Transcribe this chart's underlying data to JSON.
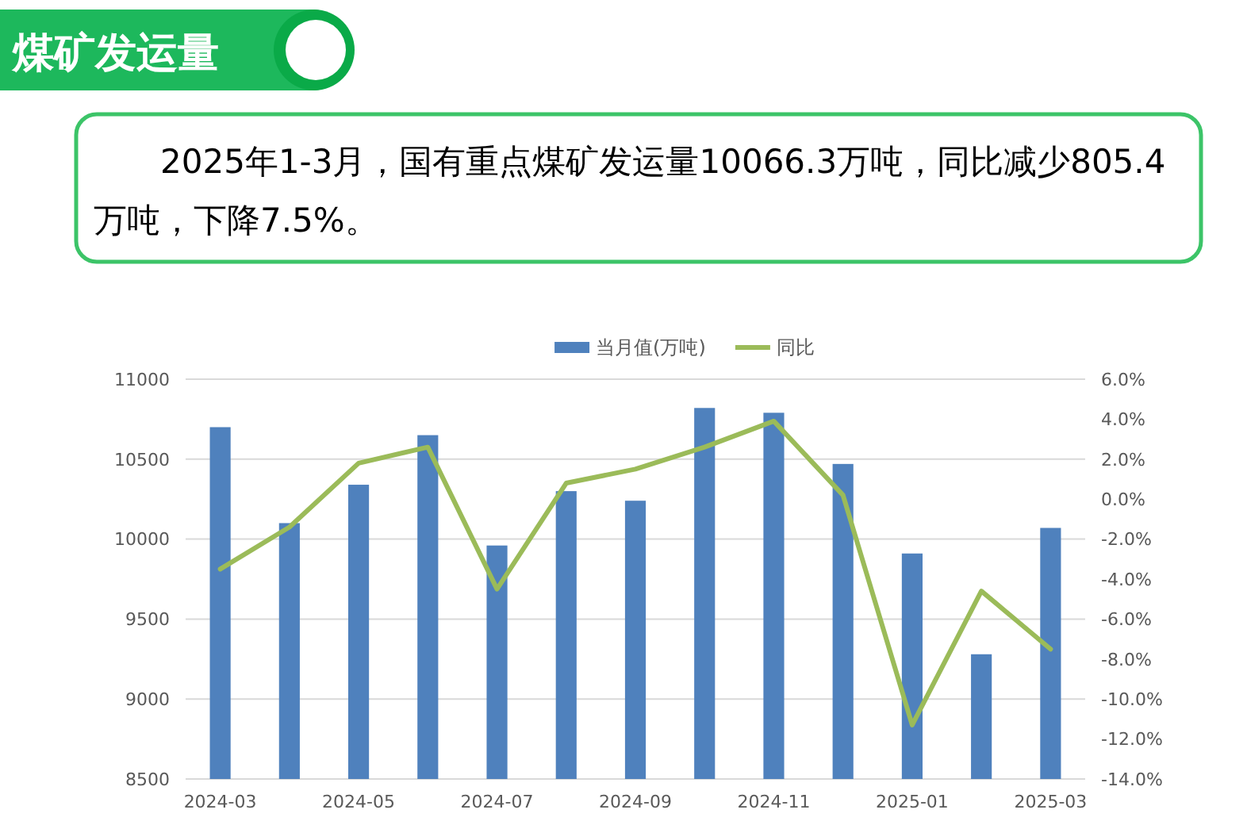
{
  "chart_data": {
    "type": "bar",
    "title": "煤矿发运量",
    "subtitle": "2025年1-3月，国有重点煤矿发运量10066.3万吨，同比减少805.4万吨，下降7.5%。",
    "categories": [
      "2024-03",
      null,
      "2024-05",
      null,
      "2024-07",
      null,
      "2024-09",
      null,
      "2024-11",
      null,
      "2025-01",
      null,
      "2025-03"
    ],
    "series": [
      {
        "name": "当月值(万吨)",
        "color": "#4f81bd",
        "values": [
          10700,
          10100,
          10340,
          10650,
          9960,
          10300,
          10240,
          10820,
          10790,
          10470,
          9910,
          9280,
          10070
        ]
      },
      {
        "name": "同比",
        "type": "line",
        "color": "#9bbb59",
        "axis": "y2",
        "values": [
          -3.5,
          -1.4,
          1.8,
          2.6,
          -4.5,
          0.8,
          1.5,
          2.6,
          3.9,
          0.2,
          -11.3,
          -4.6,
          -7.5
        ]
      }
    ],
    "ylim": [
      8500,
      11000
    ],
    "yticks": [
      8500,
      9000,
      9500,
      10000,
      10500,
      11000
    ],
    "y2lim": [
      -14,
      6
    ],
    "y2ticks": [
      {
        "value": -14,
        "label": "-14.0%"
      },
      {
        "value": -12,
        "label": "-12.0%"
      },
      {
        "value": -10,
        "label": "-10.0%"
      },
      {
        "value": -8,
        "label": "-8.0%"
      },
      {
        "value": -6,
        "label": "-6.0%"
      },
      {
        "value": -4,
        "label": "-4.0%"
      },
      {
        "value": -2,
        "label": "-2.0%"
      },
      {
        "value": 0,
        "label": "0.0%"
      },
      {
        "value": 2,
        "label": "2.0%"
      },
      {
        "value": 4,
        "label": "4.0%"
      },
      {
        "value": 6,
        "label": "6.0%"
      }
    ],
    "grid": "y",
    "legend": "top"
  }
}
